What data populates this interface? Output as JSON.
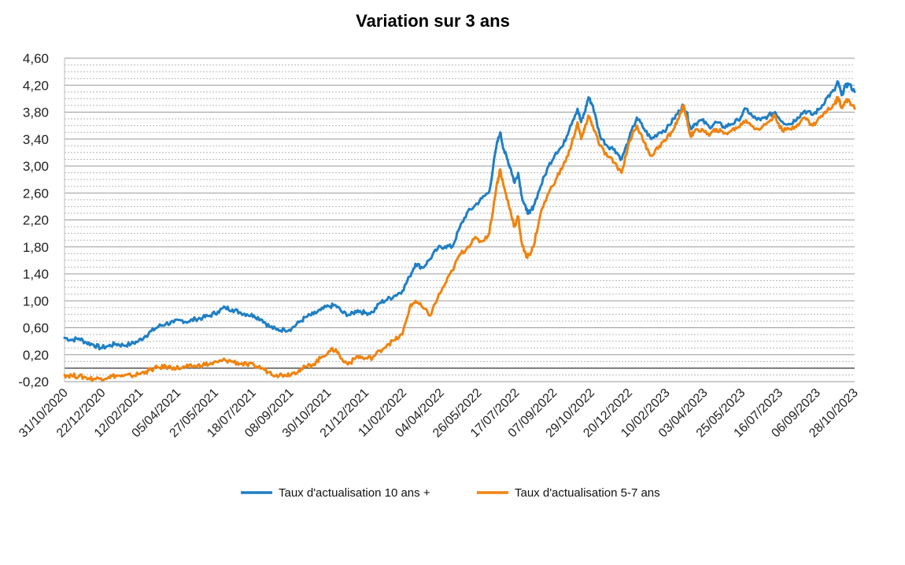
{
  "chart_data": {
    "type": "line",
    "title": "Variation sur 3 ans",
    "xlabel": "",
    "ylabel": "",
    "ylim": [
      -0.2,
      4.6
    ],
    "ytick_labels": [
      "-0,20",
      "0,20",
      "0,60",
      "1,00",
      "1,40",
      "1,80",
      "2,20",
      "2,60",
      "3,00",
      "3,40",
      "3,80",
      "4,20",
      "4,60"
    ],
    "xtick_labels": [
      "31/10/2020",
      "22/12/2020",
      "12/02/2021",
      "05/04/2021",
      "27/05/2021",
      "18/07/2021",
      "08/09/2021",
      "30/10/2021",
      "21/12/2021",
      "11/02/2022",
      "04/04/2022",
      "26/05/2022",
      "17/07/2022",
      "07/09/2022",
      "29/10/2022",
      "20/12/2022",
      "10/02/2023",
      "03/04/2023",
      "25/05/2023",
      "16/07/2023",
      "06/09/2023",
      "28/10/2023"
    ],
    "x_range": [
      "31/10/2020",
      "28/10/2023"
    ],
    "grid": true,
    "legend_position": "bottom",
    "series": [
      {
        "name": "Taux d'actualisation 10 ans +",
        "color": "#1f7fc4",
        "points": [
          [
            "2020-10-31",
            0.45
          ],
          [
            "2020-11-10",
            0.42
          ],
          [
            "2020-11-20",
            0.44
          ],
          [
            "2020-11-30",
            0.38
          ],
          [
            "2020-12-10",
            0.35
          ],
          [
            "2020-12-20",
            0.3
          ],
          [
            "2020-12-31",
            0.33
          ],
          [
            "2021-01-10",
            0.36
          ],
          [
            "2021-01-20",
            0.34
          ],
          [
            "2021-01-31",
            0.36
          ],
          [
            "2021-02-10",
            0.4
          ],
          [
            "2021-02-20",
            0.48
          ],
          [
            "2021-02-28",
            0.55
          ],
          [
            "2021-03-10",
            0.62
          ],
          [
            "2021-03-20",
            0.66
          ],
          [
            "2021-03-31",
            0.68
          ],
          [
            "2021-04-10",
            0.71
          ],
          [
            "2021-04-20",
            0.69
          ],
          [
            "2021-04-30",
            0.73
          ],
          [
            "2021-05-10",
            0.75
          ],
          [
            "2021-05-20",
            0.78
          ],
          [
            "2021-05-31",
            0.84
          ],
          [
            "2021-06-10",
            0.9
          ],
          [
            "2021-06-20",
            0.87
          ],
          [
            "2021-06-30",
            0.83
          ],
          [
            "2021-07-10",
            0.8
          ],
          [
            "2021-07-20",
            0.78
          ],
          [
            "2021-07-31",
            0.72
          ],
          [
            "2021-08-10",
            0.62
          ],
          [
            "2021-08-20",
            0.57
          ],
          [
            "2021-08-31",
            0.57
          ],
          [
            "2021-09-10",
            0.59
          ],
          [
            "2021-09-20",
            0.68
          ],
          [
            "2021-09-30",
            0.76
          ],
          [
            "2021-10-10",
            0.8
          ],
          [
            "2021-10-20",
            0.86
          ],
          [
            "2021-10-31",
            0.92
          ],
          [
            "2021-11-10",
            0.93
          ],
          [
            "2021-11-20",
            0.82
          ],
          [
            "2021-11-30",
            0.79
          ],
          [
            "2021-12-10",
            0.86
          ],
          [
            "2021-12-20",
            0.82
          ],
          [
            "2021-12-31",
            0.83
          ],
          [
            "2022-01-10",
            0.97
          ],
          [
            "2022-01-20",
            1.02
          ],
          [
            "2022-01-31",
            1.08
          ],
          [
            "2022-02-10",
            1.15
          ],
          [
            "2022-02-20",
            1.36
          ],
          [
            "2022-02-28",
            1.55
          ],
          [
            "2022-03-10",
            1.49
          ],
          [
            "2022-03-20",
            1.62
          ],
          [
            "2022-03-31",
            1.78
          ],
          [
            "2022-04-10",
            1.81
          ],
          [
            "2022-04-20",
            1.8
          ],
          [
            "2022-04-30",
            2.08
          ],
          [
            "2022-05-10",
            2.3
          ],
          [
            "2022-05-20",
            2.4
          ],
          [
            "2022-05-31",
            2.52
          ],
          [
            "2022-06-10",
            2.62
          ],
          [
            "2022-06-20",
            3.3
          ],
          [
            "2022-06-25",
            3.5
          ],
          [
            "2022-06-30",
            3.25
          ],
          [
            "2022-07-05",
            3.1
          ],
          [
            "2022-07-10",
            2.95
          ],
          [
            "2022-07-15",
            2.75
          ],
          [
            "2022-07-20",
            2.9
          ],
          [
            "2022-07-25",
            2.55
          ],
          [
            "2022-07-31",
            2.35
          ],
          [
            "2022-08-05",
            2.3
          ],
          [
            "2022-08-10",
            2.4
          ],
          [
            "2022-08-20",
            2.7
          ],
          [
            "2022-08-31",
            3.0
          ],
          [
            "2022-09-10",
            3.2
          ],
          [
            "2022-09-20",
            3.3
          ],
          [
            "2022-09-30",
            3.6
          ],
          [
            "2022-10-10",
            3.85
          ],
          [
            "2022-10-15",
            3.65
          ],
          [
            "2022-10-20",
            3.8
          ],
          [
            "2022-10-25",
            4.02
          ],
          [
            "2022-10-31",
            3.9
          ],
          [
            "2022-11-10",
            3.45
          ],
          [
            "2022-11-20",
            3.3
          ],
          [
            "2022-11-30",
            3.25
          ],
          [
            "2022-12-10",
            3.1
          ],
          [
            "2022-12-20",
            3.4
          ],
          [
            "2022-12-31",
            3.72
          ],
          [
            "2023-01-10",
            3.55
          ],
          [
            "2023-01-20",
            3.4
          ],
          [
            "2023-01-31",
            3.5
          ],
          [
            "2023-02-10",
            3.55
          ],
          [
            "2023-02-20",
            3.7
          ],
          [
            "2023-02-28",
            3.82
          ],
          [
            "2023-03-05",
            3.9
          ],
          [
            "2023-03-10",
            3.8
          ],
          [
            "2023-03-15",
            3.55
          ],
          [
            "2023-03-20",
            3.62
          ],
          [
            "2023-03-31",
            3.68
          ],
          [
            "2023-04-10",
            3.58
          ],
          [
            "2023-04-20",
            3.65
          ],
          [
            "2023-04-30",
            3.58
          ],
          [
            "2023-05-10",
            3.62
          ],
          [
            "2023-05-20",
            3.68
          ],
          [
            "2023-05-31",
            3.85
          ],
          [
            "2023-06-10",
            3.72
          ],
          [
            "2023-06-20",
            3.68
          ],
          [
            "2023-06-30",
            3.74
          ],
          [
            "2023-07-10",
            3.8
          ],
          [
            "2023-07-20",
            3.66
          ],
          [
            "2023-07-31",
            3.62
          ],
          [
            "2023-08-10",
            3.72
          ],
          [
            "2023-08-20",
            3.82
          ],
          [
            "2023-08-31",
            3.76
          ],
          [
            "2023-09-10",
            3.85
          ],
          [
            "2023-09-20",
            4.02
          ],
          [
            "2023-09-30",
            4.12
          ],
          [
            "2023-10-05",
            4.25
          ],
          [
            "2023-10-10",
            4.05
          ],
          [
            "2023-10-15",
            4.18
          ],
          [
            "2023-10-20",
            4.22
          ],
          [
            "2023-10-28",
            4.1
          ]
        ]
      },
      {
        "name": "Taux d'actualisation 5-7 ans",
        "color": "#f0830f",
        "points": [
          [
            "2020-10-31",
            -0.1
          ],
          [
            "2020-11-10",
            -0.11
          ],
          [
            "2020-11-20",
            -0.12
          ],
          [
            "2020-11-30",
            -0.14
          ],
          [
            "2020-12-10",
            -0.16
          ],
          [
            "2020-12-20",
            -0.15
          ],
          [
            "2020-12-31",
            -0.13
          ],
          [
            "2021-01-10",
            -0.11
          ],
          [
            "2021-01-20",
            -0.12
          ],
          [
            "2021-01-31",
            -0.11
          ],
          [
            "2021-02-10",
            -0.09
          ],
          [
            "2021-02-20",
            -0.05
          ],
          [
            "2021-02-28",
            -0.02
          ],
          [
            "2021-03-10",
            0.01
          ],
          [
            "2021-03-20",
            0.02
          ],
          [
            "2021-03-31",
            0.01
          ],
          [
            "2021-04-10",
            0.0
          ],
          [
            "2021-04-20",
            0.02
          ],
          [
            "2021-04-30",
            0.03
          ],
          [
            "2021-05-10",
            0.05
          ],
          [
            "2021-05-20",
            0.06
          ],
          [
            "2021-05-31",
            0.09
          ],
          [
            "2021-06-10",
            0.12
          ],
          [
            "2021-06-20",
            0.1
          ],
          [
            "2021-06-30",
            0.07
          ],
          [
            "2021-07-10",
            0.05
          ],
          [
            "2021-07-20",
            0.04
          ],
          [
            "2021-07-31",
            0.0
          ],
          [
            "2021-08-10",
            -0.06
          ],
          [
            "2021-08-20",
            -0.1
          ],
          [
            "2021-08-31",
            -0.1
          ],
          [
            "2021-09-10",
            -0.08
          ],
          [
            "2021-09-20",
            -0.03
          ],
          [
            "2021-09-30",
            0.02
          ],
          [
            "2021-10-10",
            0.06
          ],
          [
            "2021-10-20",
            0.15
          ],
          [
            "2021-10-31",
            0.25
          ],
          [
            "2021-11-10",
            0.28
          ],
          [
            "2021-11-20",
            0.1
          ],
          [
            "2021-11-30",
            0.08
          ],
          [
            "2021-12-10",
            0.18
          ],
          [
            "2021-12-20",
            0.14
          ],
          [
            "2021-12-31",
            0.16
          ],
          [
            "2022-01-10",
            0.26
          ],
          [
            "2022-01-20",
            0.35
          ],
          [
            "2022-01-31",
            0.42
          ],
          [
            "2022-02-10",
            0.5
          ],
          [
            "2022-02-20",
            0.9
          ],
          [
            "2022-02-28",
            1.0
          ],
          [
            "2022-03-10",
            0.9
          ],
          [
            "2022-03-20",
            0.78
          ],
          [
            "2022-03-31",
            1.05
          ],
          [
            "2022-04-10",
            1.25
          ],
          [
            "2022-04-20",
            1.45
          ],
          [
            "2022-04-30",
            1.68
          ],
          [
            "2022-05-10",
            1.78
          ],
          [
            "2022-05-20",
            1.92
          ],
          [
            "2022-05-31",
            1.88
          ],
          [
            "2022-06-10",
            2.0
          ],
          [
            "2022-06-20",
            2.7
          ],
          [
            "2022-06-25",
            2.95
          ],
          [
            "2022-06-30",
            2.7
          ],
          [
            "2022-07-05",
            2.5
          ],
          [
            "2022-07-10",
            2.3
          ],
          [
            "2022-07-15",
            2.1
          ],
          [
            "2022-07-20",
            2.25
          ],
          [
            "2022-07-25",
            1.85
          ],
          [
            "2022-07-31",
            1.65
          ],
          [
            "2022-08-05",
            1.7
          ],
          [
            "2022-08-10",
            1.8
          ],
          [
            "2022-08-20",
            2.3
          ],
          [
            "2022-08-31",
            2.6
          ],
          [
            "2022-09-10",
            2.8
          ],
          [
            "2022-09-20",
            3.0
          ],
          [
            "2022-09-30",
            3.25
          ],
          [
            "2022-10-10",
            3.65
          ],
          [
            "2022-10-15",
            3.4
          ],
          [
            "2022-10-20",
            3.55
          ],
          [
            "2022-10-25",
            3.75
          ],
          [
            "2022-10-31",
            3.6
          ],
          [
            "2022-11-10",
            3.3
          ],
          [
            "2022-11-20",
            3.15
          ],
          [
            "2022-11-30",
            3.05
          ],
          [
            "2022-12-10",
            2.9
          ],
          [
            "2022-12-20",
            3.35
          ],
          [
            "2022-12-31",
            3.6
          ],
          [
            "2023-01-10",
            3.35
          ],
          [
            "2023-01-20",
            3.15
          ],
          [
            "2023-01-31",
            3.3
          ],
          [
            "2023-02-10",
            3.4
          ],
          [
            "2023-02-20",
            3.55
          ],
          [
            "2023-02-28",
            3.75
          ],
          [
            "2023-03-05",
            3.9
          ],
          [
            "2023-03-10",
            3.7
          ],
          [
            "2023-03-15",
            3.45
          ],
          [
            "2023-03-20",
            3.5
          ],
          [
            "2023-03-31",
            3.55
          ],
          [
            "2023-04-10",
            3.45
          ],
          [
            "2023-04-20",
            3.55
          ],
          [
            "2023-04-30",
            3.48
          ],
          [
            "2023-05-10",
            3.52
          ],
          [
            "2023-05-20",
            3.58
          ],
          [
            "2023-05-31",
            3.68
          ],
          [
            "2023-06-10",
            3.58
          ],
          [
            "2023-06-20",
            3.55
          ],
          [
            "2023-06-30",
            3.65
          ],
          [
            "2023-07-10",
            3.75
          ],
          [
            "2023-07-20",
            3.52
          ],
          [
            "2023-07-31",
            3.55
          ],
          [
            "2023-08-10",
            3.62
          ],
          [
            "2023-08-20",
            3.72
          ],
          [
            "2023-08-31",
            3.6
          ],
          [
            "2023-09-10",
            3.72
          ],
          [
            "2023-09-20",
            3.82
          ],
          [
            "2023-09-30",
            3.92
          ],
          [
            "2023-10-05",
            4.02
          ],
          [
            "2023-10-10",
            3.88
          ],
          [
            "2023-10-15",
            3.95
          ],
          [
            "2023-10-20",
            3.98
          ],
          [
            "2023-10-28",
            3.85
          ]
        ]
      }
    ]
  }
}
